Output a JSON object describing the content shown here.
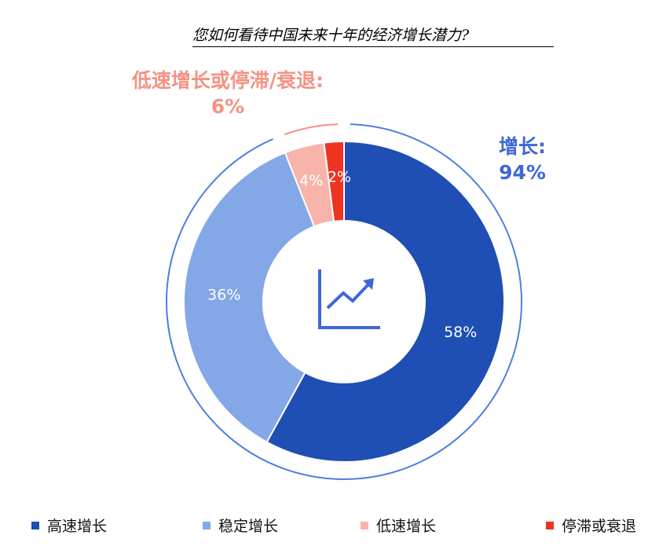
{
  "title": "您如何看待中国未来十年的经济增长潜力?",
  "groups": {
    "decline": {
      "label": "低速增长或停滞/衰退:",
      "value": "6%"
    },
    "growth": {
      "label": "增长:",
      "value": "94%"
    }
  },
  "colors": {
    "high": "#1f4eb4",
    "stable": "#84a7e8",
    "low": "#f8b4ab",
    "stagnation": "#ee3322",
    "ring_growth": "#4f7fe0",
    "ring_decline": "#f49284",
    "icon": "#3d67d6"
  },
  "center_icon": "line-chart-up-icon",
  "chart_data": {
    "type": "pie",
    "subtype": "donut",
    "categories": [
      "高速增长",
      "稳定增长",
      "低速增长",
      "停滞或衰退"
    ],
    "values": [
      58,
      36,
      4,
      2
    ],
    "data_labels": [
      "58%",
      "36%",
      "4%",
      "2%"
    ],
    "legend_position": "bottom",
    "title": "您如何看待中国未来十年的经济增长潜力?"
  }
}
